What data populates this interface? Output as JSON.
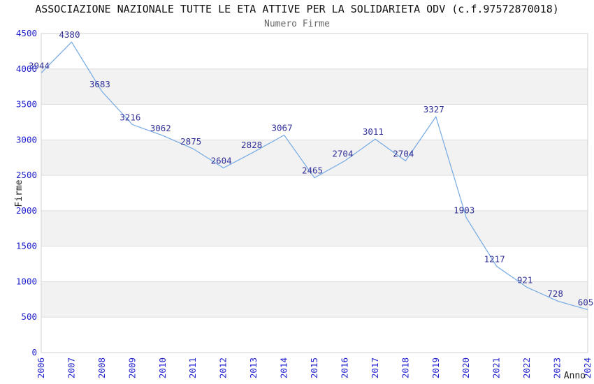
{
  "chart_data": {
    "type": "line",
    "title": "ASSOCIAZIONE NAZIONALE TUTTE LE ETA ATTIVE PER LA SOLIDARIETA ODV (c.f.97572870018)",
    "subtitle": "Numero Firme",
    "xlabel": "Anno",
    "ylabel": "Firme",
    "categories": [
      "2006",
      "2007",
      "2008",
      "2009",
      "2010",
      "2011",
      "2012",
      "2013",
      "2014",
      "2015",
      "2016",
      "2017",
      "2018",
      "2019",
      "2020",
      "2021",
      "2022",
      "2023",
      "2024"
    ],
    "values": [
      3944,
      4380,
      3683,
      3216,
      3062,
      2875,
      2604,
      2828,
      3067,
      2465,
      2704,
      3011,
      2704,
      3327,
      1903,
      1217,
      921,
      728,
      605
    ],
    "ylim": [
      0,
      4500
    ],
    "ytick_step": 500,
    "yticks": [
      "0",
      "500",
      "1000",
      "1500",
      "2000",
      "2500",
      "3000",
      "3500",
      "4000",
      "4500"
    ],
    "grid": true,
    "legend_position": "none",
    "point_labels_visible": true,
    "colors": {
      "line": "#74A9E4",
      "data_labels": "#333399",
      "tick_labels": "#2121CE",
      "band": "#F2F2F2",
      "band_alt": "#FFFFFF",
      "gridline": "#DEDEDE",
      "border": "#D0D0D0",
      "title": "#111111",
      "subtitle": "#666666",
      "axis_title": "#222222"
    }
  }
}
